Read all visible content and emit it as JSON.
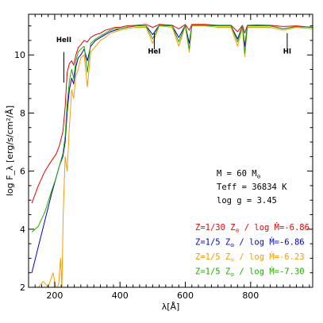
{
  "chart_data": {
    "type": "line",
    "xlabel": "λ[Å]",
    "ylabel": "log F_λ [erg/s/cm²/Å]",
    "xlim": [
      120,
      990
    ],
    "ylim": [
      2,
      11.4
    ],
    "x_ticks": [
      200,
      400,
      600,
      800
    ],
    "y_ticks": [
      2,
      4,
      6,
      8,
      10
    ],
    "grid": false,
    "legend_placement": "bottom-right",
    "stellar_params": [
      {
        "label": "M",
        "value": "= 60 M",
        "sub": "⊙"
      },
      {
        "label": "Teff",
        "value": "= 36834 K",
        "sub": ""
      },
      {
        "label": "log g",
        "value": "= 3.45",
        "sub": ""
      }
    ],
    "line_labels": [
      {
        "text": "HeII",
        "x": 228,
        "y_text": 10.45,
        "y_top": 10.1,
        "y_bottom": 9.05
      },
      {
        "text": "HeI",
        "x": 505,
        "y_text": 10.05,
        "y_top": 10.75,
        "y_bottom": 10.2
      },
      {
        "text": "HI",
        "x": 912,
        "y_text": 10.05,
        "y_top": 10.75,
        "y_bottom": 10.2
      }
    ],
    "series": [
      {
        "name": "Z=1/30 Z⊙ / log Ṁ=-6.86",
        "label_parts": [
          "Z=1/30 Z",
          "⊙",
          " / log ",
          "Ṁ",
          "=-6.86"
        ],
        "color": "#ee0000",
        "x": [
          130,
          150,
          170,
          190,
          205,
          215,
          225,
          232,
          238,
          245,
          252,
          258,
          265,
          272,
          280,
          290,
          300,
          310,
          325,
          340,
          355,
          370,
          385,
          400,
          420,
          450,
          480,
          500,
          520,
          560,
          580,
          600,
          612,
          620,
          660,
          700,
          740,
          760,
          775,
          782,
          790,
          820,
          860,
          900,
          940,
          990
        ],
        "y": [
          4.9,
          5.5,
          6.0,
          6.35,
          6.6,
          6.9,
          7.35,
          8.2,
          9.4,
          9.7,
          9.8,
          9.65,
          10.0,
          10.25,
          10.35,
          10.5,
          10.45,
          10.6,
          10.7,
          10.75,
          10.85,
          10.9,
          10.95,
          10.95,
          11.0,
          11.02,
          11.05,
          10.95,
          11.05,
          11.02,
          10.9,
          11.05,
          10.85,
          11.05,
          11.05,
          11.02,
          11.02,
          10.8,
          11.02,
          10.75,
          11.02,
          11.03,
          11.02,
          10.98,
          11.0,
          10.95
        ]
      },
      {
        "name": "Z=1/5 Z⊙ / log Ṁ=-6.86",
        "label_parts": [
          "Z=1/5 Z",
          "⊙",
          " / log ",
          "Ṁ",
          "=-6.86"
        ],
        "color": "#0000cc",
        "x": [
          130,
          150,
          170,
          190,
          205,
          215,
          225,
          232,
          238,
          245,
          252,
          258,
          265,
          272,
          280,
          290,
          300,
          310,
          325,
          340,
          355,
          370,
          385,
          400,
          420,
          450,
          480,
          500,
          520,
          560,
          580,
          600,
          612,
          620,
          660,
          700,
          740,
          760,
          775,
          782,
          790,
          820,
          860,
          900,
          940,
          990
        ],
        "y": [
          2.5,
          3.4,
          4.3,
          5.2,
          5.8,
          6.2,
          6.5,
          7.0,
          8.0,
          8.8,
          9.2,
          9.0,
          9.6,
          9.9,
          10.0,
          10.2,
          9.8,
          10.3,
          10.5,
          10.6,
          10.7,
          10.8,
          10.85,
          10.9,
          10.95,
          11.0,
          11.0,
          10.7,
          11.02,
          11.0,
          10.6,
          11.02,
          10.4,
          11.02,
          11.02,
          11.0,
          11.0,
          10.55,
          11.0,
          10.3,
          11.0,
          11.0,
          11.0,
          10.9,
          10.98,
          10.95
        ]
      },
      {
        "name": "Z=1/5 Z⊙ / log Ṁ=-6.23",
        "label_parts": [
          "Z=1/5 Z",
          "⊙",
          " / log ",
          "Ṁ",
          "=-6.23"
        ],
        "color": "#ff9900",
        "x": [
          130,
          150,
          165,
          180,
          195,
          205,
          212,
          218,
          222,
          226,
          232,
          238,
          245,
          252,
          258,
          265,
          272,
          280,
          290,
          300,
          310,
          325,
          340,
          355,
          370,
          385,
          400,
          420,
          450,
          480,
          500,
          520,
          560,
          580,
          600,
          612,
          620,
          660,
          700,
          740,
          760,
          775,
          782,
          790,
          820,
          860,
          900,
          940,
          990
        ],
        "y": [
          2.0,
          2.0,
          2.2,
          2.0,
          2.5,
          1.9,
          2.1,
          3.0,
          2.0,
          4.5,
          6.5,
          6.0,
          7.5,
          8.8,
          8.5,
          9.3,
          9.5,
          9.9,
          10.0,
          8.9,
          10.1,
          10.3,
          10.5,
          10.6,
          10.75,
          10.8,
          10.85,
          10.9,
          10.95,
          10.95,
          10.4,
          11.0,
          10.95,
          10.3,
          11.0,
          10.1,
          11.0,
          11.0,
          10.95,
          10.95,
          10.3,
          10.95,
          9.95,
          10.95,
          10.95,
          10.95,
          10.85,
          10.95,
          10.9
        ]
      },
      {
        "name": "Z=1/5 Z⊙ / log Ṁ=-7.30",
        "label_parts": [
          "Z=1/5 Z",
          "⊙",
          " / log ",
          "Ṁ",
          "=-7.30"
        ],
        "color": "#22aa00",
        "x": [
          130,
          150,
          170,
          190,
          205,
          215,
          225,
          232,
          238,
          245,
          252,
          258,
          265,
          272,
          280,
          290,
          300,
          310,
          325,
          340,
          355,
          370,
          385,
          400,
          420,
          450,
          480,
          500,
          520,
          560,
          580,
          600,
          612,
          620,
          660,
          700,
          740,
          760,
          775,
          782,
          790,
          820,
          860,
          900,
          940,
          990
        ],
        "y": [
          3.9,
          4.1,
          4.6,
          5.3,
          5.8,
          6.2,
          6.6,
          7.2,
          8.3,
          9.1,
          9.5,
          9.2,
          9.8,
          10.1,
          10.2,
          10.3,
          9.4,
          10.4,
          10.55,
          10.65,
          10.75,
          10.85,
          10.9,
          10.9,
          10.95,
          11.0,
          11.0,
          10.55,
          11.02,
          11.0,
          10.45,
          11.02,
          10.2,
          11.02,
          11.02,
          11.0,
          11.0,
          10.45,
          11.0,
          10.05,
          11.0,
          11.0,
          11.0,
          10.9,
          10.98,
          10.95
        ]
      }
    ]
  }
}
